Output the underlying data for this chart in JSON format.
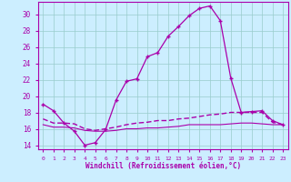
{
  "xlabel": "Windchill (Refroidissement éolien,°C)",
  "background_color": "#cceeff",
  "line_color": "#aa00aa",
  "grid_color": "#99cccc",
  "xlim": [
    -0.5,
    23.5
  ],
  "ylim": [
    13.5,
    31.5
  ],
  "yticks": [
    14,
    16,
    18,
    20,
    22,
    24,
    26,
    28,
    30
  ],
  "xticks": [
    0,
    1,
    2,
    3,
    4,
    5,
    6,
    7,
    8,
    9,
    10,
    11,
    12,
    13,
    14,
    15,
    16,
    17,
    18,
    19,
    20,
    21,
    22,
    23
  ],
  "line1_x": [
    0,
    1,
    2,
    3,
    4,
    5,
    6,
    7,
    8,
    9,
    10,
    11,
    12,
    13,
    14,
    15,
    16,
    17,
    18,
    19,
    20,
    21,
    22,
    23
  ],
  "line1_y": [
    19.0,
    18.2,
    16.7,
    15.7,
    14.0,
    14.3,
    15.9,
    19.5,
    21.8,
    22.1,
    24.8,
    25.3,
    27.3,
    28.5,
    29.8,
    30.7,
    31.0,
    29.2,
    22.2,
    18.0,
    18.1,
    18.2,
    17.0,
    16.5
  ],
  "line2_x": [
    0,
    1,
    2,
    3,
    4,
    5,
    6,
    7,
    8,
    9,
    10,
    11,
    12,
    13,
    14,
    15,
    16,
    17,
    18,
    19,
    20,
    21,
    22,
    23
  ],
  "line2_y": [
    17.2,
    16.7,
    16.7,
    16.6,
    16.0,
    15.8,
    16.0,
    16.2,
    16.5,
    16.7,
    16.8,
    17.0,
    17.0,
    17.2,
    17.3,
    17.5,
    17.7,
    17.8,
    18.0,
    18.0,
    18.0,
    18.0,
    16.8,
    16.5
  ],
  "line3_x": [
    0,
    1,
    2,
    3,
    4,
    5,
    6,
    7,
    8,
    9,
    10,
    11,
    12,
    13,
    14,
    15,
    16,
    17,
    18,
    19,
    20,
    21,
    22,
    23
  ],
  "line3_y": [
    16.5,
    16.2,
    16.2,
    16.1,
    15.8,
    15.7,
    15.7,
    15.8,
    16.0,
    16.0,
    16.1,
    16.1,
    16.2,
    16.3,
    16.5,
    16.5,
    16.5,
    16.5,
    16.6,
    16.7,
    16.7,
    16.6,
    16.5,
    16.5
  ]
}
